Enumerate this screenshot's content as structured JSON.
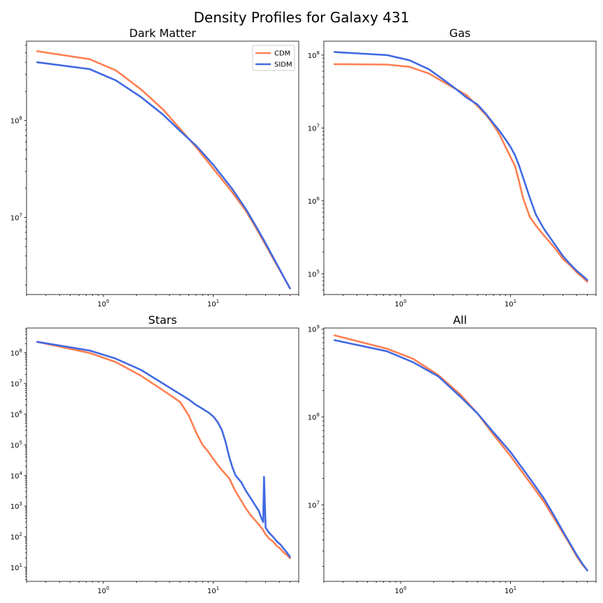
{
  "figure_title": "Density Profiles for Galaxy 431",
  "colors": {
    "CDM": "#ff7f50",
    "SIDM": "#4169e1"
  },
  "chart_data": [
    {
      "type": "line",
      "title": "Dark Matter",
      "xscale": "log",
      "yscale": "log",
      "xlim": [
        0.2,
        60
      ],
      "ylim": [
        1600000.0,
        660000000.0
      ],
      "xticks": [
        {
          "value": 1,
          "base": "10",
          "exp": "0"
        },
        {
          "value": 10,
          "base": "10",
          "exp": "1"
        }
      ],
      "yticks": [
        {
          "value": 10000000.0,
          "base": "10",
          "exp": "7"
        },
        {
          "value": 100000000.0,
          "base": "10",
          "exp": "8"
        }
      ],
      "legend": {
        "position": "top-right",
        "entries": [
          "CDM",
          "SIDM"
        ]
      },
      "series": [
        {
          "name": "CDM",
          "x": [
            0.25,
            0.75,
            1.3,
            2.2,
            3.5,
            5.0,
            7.0,
            10,
            15,
            20,
            25,
            30,
            35,
            40,
            45,
            50
          ],
          "y": [
            520000000.0,
            430000000.0,
            330000000.0,
            210000000.0,
            130000000.0,
            82000000.0,
            53000000.0,
            32000000.0,
            18000000.0,
            11500000.0,
            7500000.0,
            5200000.0,
            3800000.0,
            2900000.0,
            2300000.0,
            1850000.0
          ]
        },
        {
          "name": "SIDM",
          "x": [
            0.25,
            0.75,
            1.3,
            2.2,
            3.5,
            5.0,
            7.0,
            10,
            15,
            20,
            25,
            30,
            35,
            40,
            45,
            50
          ],
          "y": [
            400000000.0,
            340000000.0,
            260000000.0,
            175000000.0,
            115000000.0,
            78000000.0,
            55000000.0,
            35000000.0,
            19500000.0,
            12000000.0,
            7800000.0,
            5400000.0,
            3900000.0,
            2950000.0,
            2300000.0,
            1850000.0
          ]
        }
      ]
    },
    {
      "type": "line",
      "title": "Gas",
      "xscale": "log",
      "yscale": "log",
      "xlim": [
        0.2,
        60
      ],
      "ylim": [
        52000.0,
        155000000.0
      ],
      "xticks": [
        {
          "value": 1,
          "base": "10",
          "exp": "0"
        },
        {
          "value": 10,
          "base": "10",
          "exp": "1"
        }
      ],
      "yticks": [
        {
          "value": 100000.0,
          "base": "10",
          "exp": "5"
        },
        {
          "value": 1000000.0,
          "base": "10",
          "exp": "6"
        },
        {
          "value": 10000000.0,
          "base": "10",
          "exp": "7"
        },
        {
          "value": 100000000.0,
          "base": "10",
          "exp": "8"
        }
      ],
      "series": [
        {
          "name": "CDM",
          "x": [
            0.25,
            0.75,
            1.2,
            1.8,
            2.5,
            3.2,
            4.0,
            5.0,
            6.0,
            7.0,
            8.0,
            9.0,
            10.0,
            11.0,
            12.0,
            13.0,
            14.0,
            15.0,
            17.0,
            20.0,
            25.0,
            30.0,
            35.0,
            40.0,
            45.0,
            50.0
          ],
          "y": [
            75000000.0,
            74000000.0,
            69000000.0,
            56000000.0,
            42000000.0,
            34000000.0,
            28000000.0,
            20000000.0,
            15000000.0,
            11000000.0,
            8000000.0,
            5500000.0,
            4000000.0,
            3000000.0,
            1800000.0,
            1100000.0,
            800000.0,
            600000.0,
            460000.0,
            340000.0,
            230000.0,
            160000.0,
            130000.0,
            105000.0,
            90000.0,
            78000.0
          ]
        },
        {
          "name": "SIDM",
          "x": [
            0.25,
            0.75,
            1.2,
            1.8,
            2.5,
            3.2,
            4.0,
            5.0,
            6.0,
            7.0,
            8.0,
            9.0,
            10.0,
            11.0,
            12.0,
            13.0,
            14.0,
            15.0,
            17.0,
            20.0,
            25.0,
            30.0,
            35.0,
            40.0,
            45.0,
            50.0
          ],
          "y": [
            110000000.0,
            100000000.0,
            85000000.0,
            64000000.0,
            45000000.0,
            34000000.0,
            26000000.0,
            21000000.0,
            15500000.0,
            11500000.0,
            9000000.0,
            7000000.0,
            5500000.0,
            4200000.0,
            3000000.0,
            2100000.0,
            1500000.0,
            1100000.0,
            650000.0,
            420000.0,
            260000.0,
            175000.0,
            135000.0,
            110000.0,
            95000.0,
            82000.0
          ]
        }
      ]
    },
    {
      "type": "line",
      "title": "Stars",
      "xscale": "log",
      "yscale": "log",
      "xlim": [
        0.2,
        60
      ],
      "ylim": [
        3.5,
        650000000.0
      ],
      "xticks": [
        {
          "value": 1,
          "base": "10",
          "exp": "0"
        },
        {
          "value": 10,
          "base": "10",
          "exp": "1"
        }
      ],
      "yticks": [
        {
          "value": 10.0,
          "base": "10",
          "exp": "1"
        },
        {
          "value": 100.0,
          "base": "10",
          "exp": "2"
        },
        {
          "value": 1000.0,
          "base": "10",
          "exp": "3"
        },
        {
          "value": 10000.0,
          "base": "10",
          "exp": "4"
        },
        {
          "value": 100000.0,
          "base": "10",
          "exp": "5"
        },
        {
          "value": 1000000.0,
          "base": "10",
          "exp": "6"
        },
        {
          "value": 10000000.0,
          "base": "10",
          "exp": "7"
        },
        {
          "value": 100000000.0,
          "base": "10",
          "exp": "8"
        }
      ],
      "series": [
        {
          "name": "CDM",
          "x": [
            0.25,
            0.75,
            1.3,
            2.2,
            3.5,
            5.0,
            6.0,
            7.0,
            8.0,
            9.0,
            10.0,
            11.0,
            12.0,
            14.0,
            16.0,
            18.0,
            20.0,
            22.0,
            24.0,
            26.0,
            28.0,
            30.0,
            32.0,
            35.0,
            38.0,
            41.0,
            44.0,
            47.0,
            50.0
          ],
          "y": [
            230000000.0,
            100000000.0,
            50000000.0,
            18000000.0,
            6000000.0,
            2500000.0,
            900000.0,
            250000.0,
            100000.0,
            60000.0,
            35000.0,
            22000.0,
            15000.0,
            8000.0,
            3000.0,
            1500.0,
            800.0,
            500.0,
            350.0,
            250.0,
            180.0,
            120.0,
            90,
            70,
            50,
            40,
            30,
            25,
            20
          ]
        },
        {
          "name": "SIDM",
          "x": [
            0.25,
            0.75,
            1.3,
            2.2,
            3.5,
            5.0,
            6.0,
            7.0,
            8.0,
            9.0,
            10.0,
            11.0,
            12.0,
            13.0,
            14.0,
            15.0,
            16.0,
            18.0,
            20.0,
            22.0,
            24.0,
            26.0,
            27.5,
            28.5,
            29.0,
            30.0,
            32.0,
            35.0,
            38.0,
            41.0,
            44.0,
            47.0,
            50.0
          ],
          "y": [
            230000000.0,
            120000000.0,
            65000000.0,
            28000000.0,
            10000000.0,
            4500000.0,
            3000000.0,
            2000000.0,
            1500000.0,
            1150000.0,
            850000.0,
            550000.0,
            300000.0,
            120000.0,
            40000.0,
            18000.0,
            10000.0,
            6000.0,
            3000.0,
            1800.0,
            1100.0,
            700.0,
            400.0,
            300.0,
            9000.0,
            200.0,
            140.0,
            100.0,
            70,
            55,
            40,
            30,
            22
          ]
        }
      ]
    },
    {
      "type": "line",
      "title": "All",
      "xscale": "log",
      "yscale": "log",
      "xlim": [
        0.2,
        60
      ],
      "ylim": [
        1350000.0,
        1030000000.0
      ],
      "xticks": [
        {
          "value": 1,
          "base": "10",
          "exp": "0"
        },
        {
          "value": 10,
          "base": "10",
          "exp": "1"
        }
      ],
      "yticks": [
        {
          "value": 10000000.0,
          "base": "10",
          "exp": "7"
        },
        {
          "value": 100000000.0,
          "base": "10",
          "exp": "8"
        },
        {
          "value": 1000000000.0,
          "base": "10",
          "exp": "9"
        }
      ],
      "series": [
        {
          "name": "CDM",
          "x": [
            0.25,
            0.75,
            1.3,
            2.2,
            3.5,
            5.0,
            7.0,
            10,
            15,
            20,
            25,
            30,
            35,
            40,
            45,
            50
          ],
          "y": [
            850000000.0,
            600000000.0,
            460000000.0,
            300000000.0,
            180000000.0,
            110000000.0,
            63000000.0,
            36000000.0,
            18000000.0,
            11000000.0,
            7000000.0,
            4800000.0,
            3500000.0,
            2600000.0,
            2100000.0,
            1800000.0
          ]
        },
        {
          "name": "SIDM",
          "x": [
            0.25,
            0.75,
            1.3,
            2.2,
            3.5,
            5.0,
            7.0,
            10,
            15,
            20,
            25,
            30,
            35,
            40,
            45,
            50
          ],
          "y": [
            750000000.0,
            560000000.0,
            420000000.0,
            290000000.0,
            170000000.0,
            110000000.0,
            67000000.0,
            40000000.0,
            20000000.0,
            12000000.0,
            7500000.0,
            5000000.0,
            3600000.0,
            2700000.0,
            2150000.0,
            1800000.0
          ]
        }
      ]
    }
  ]
}
